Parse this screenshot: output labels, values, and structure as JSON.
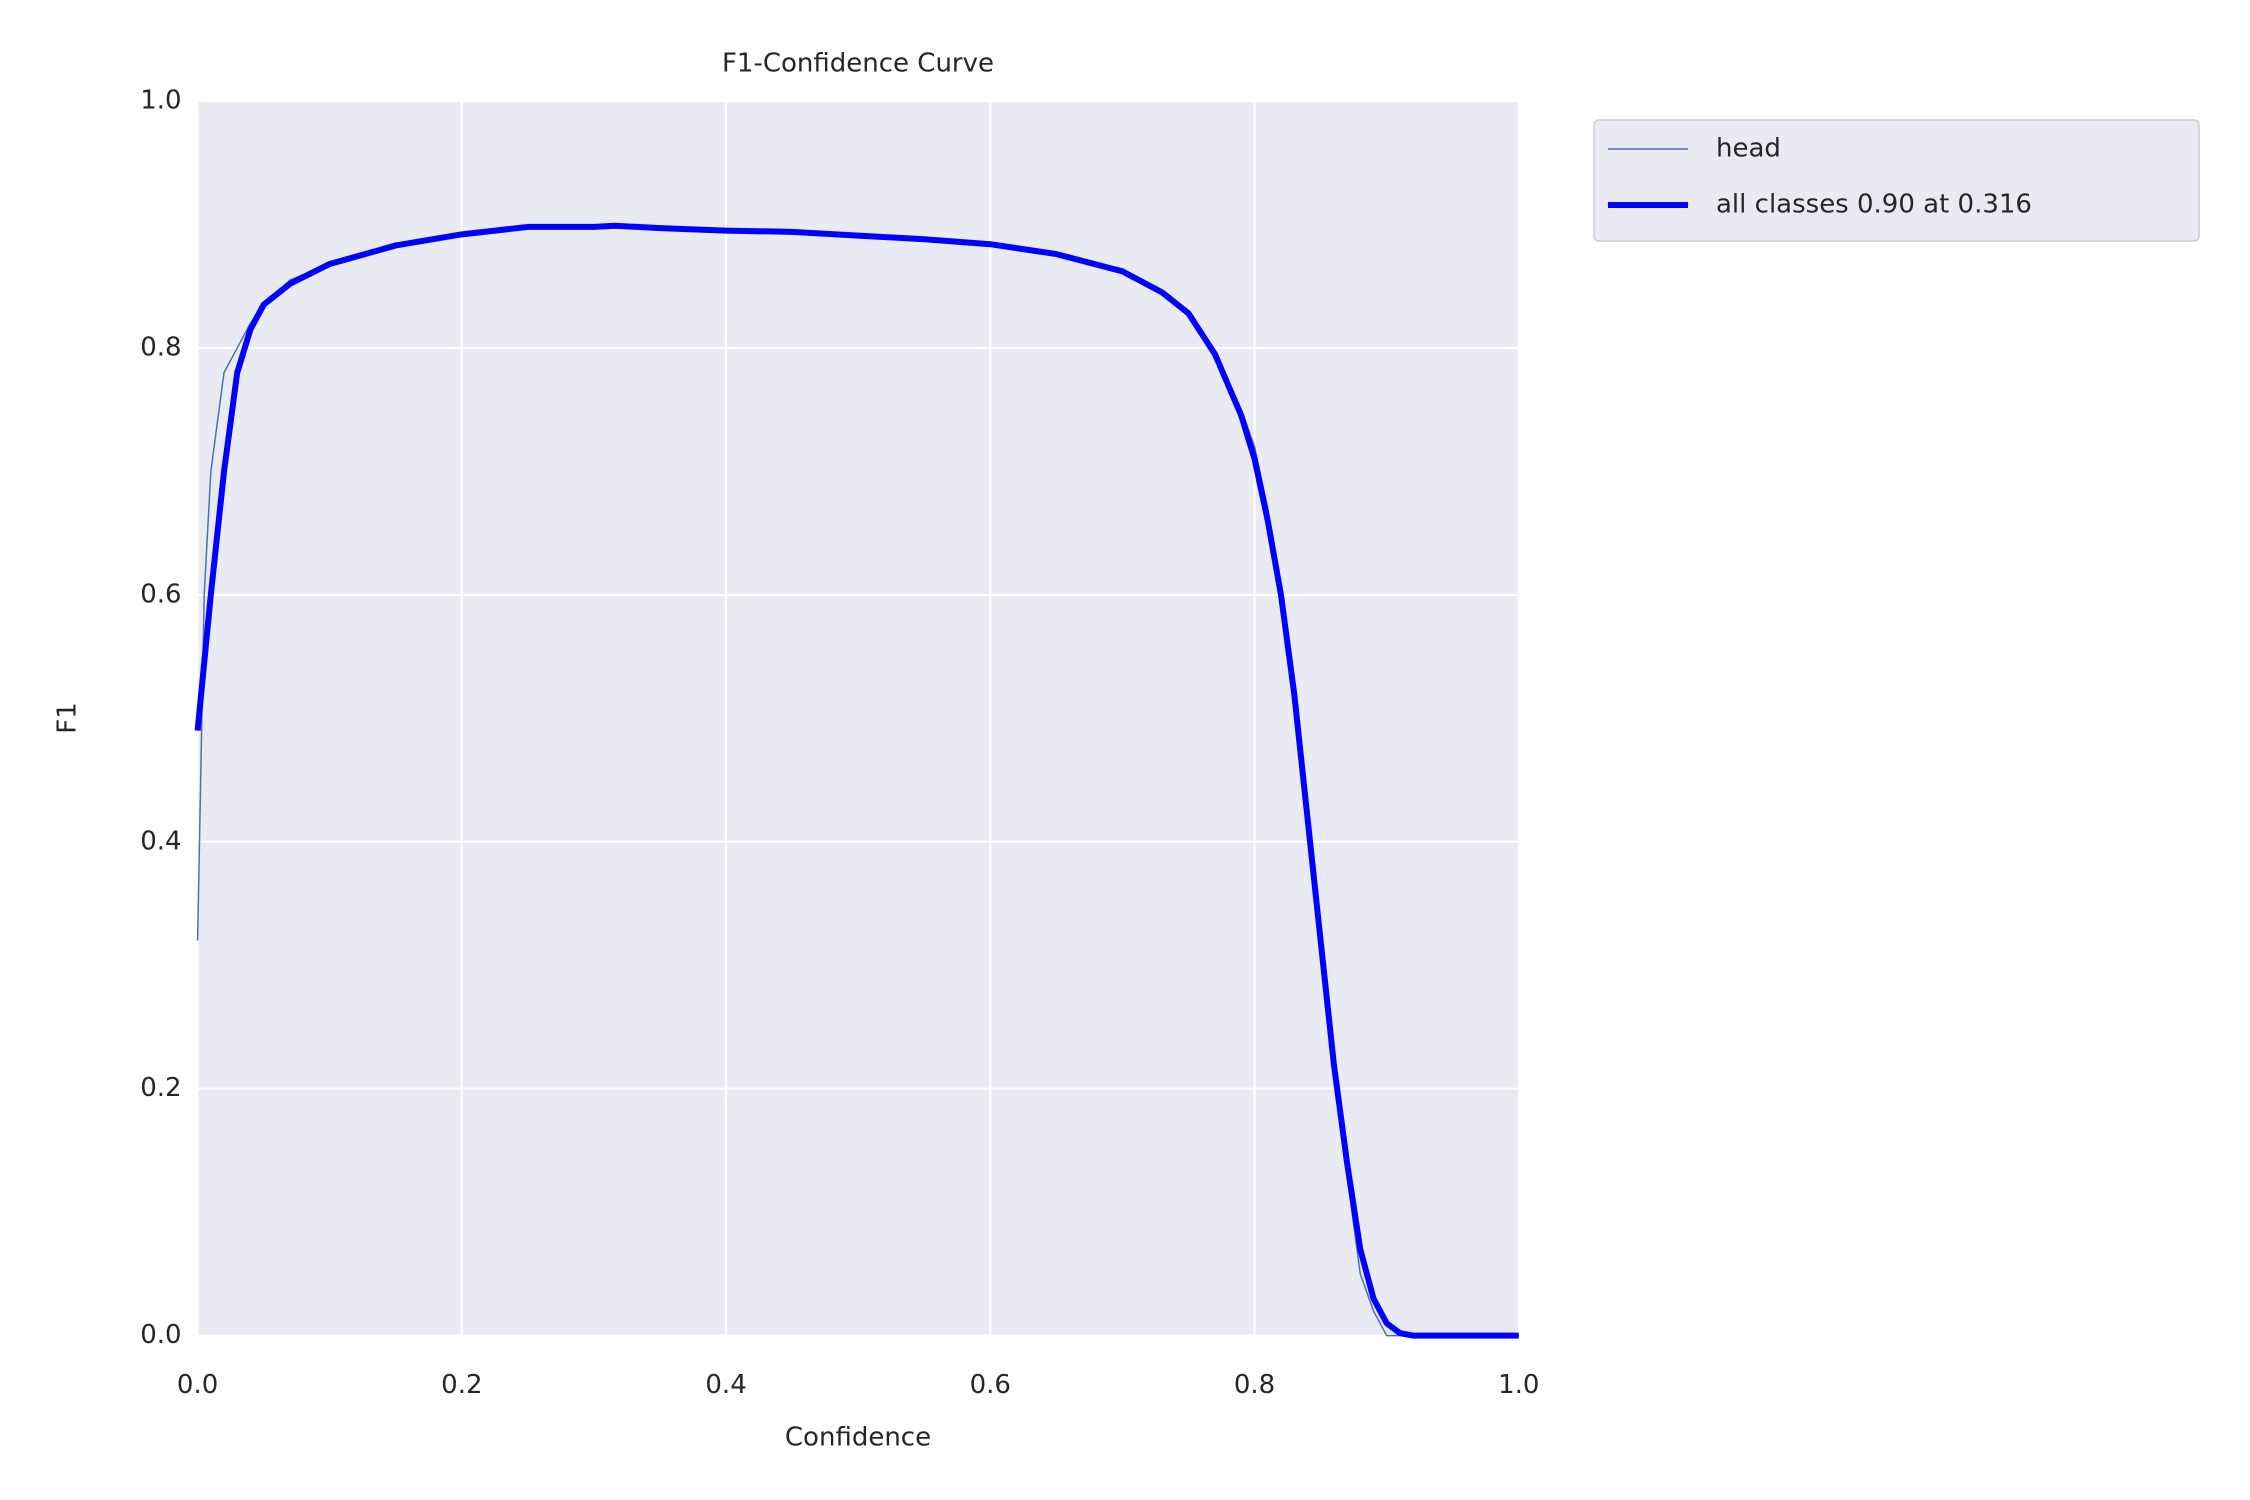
{
  "chart_data": {
    "type": "line",
    "title": "F1-Confidence Curve",
    "x_label": "Confidence",
    "y_label": "F1",
    "x": [
      0,
      0.005,
      0.01,
      0.02,
      0.03,
      0.04,
      0.05,
      0.07,
      0.1,
      0.15,
      0.2,
      0.25,
      0.3,
      0.316,
      0.35,
      0.4,
      0.45,
      0.5,
      0.55,
      0.6,
      0.65,
      0.7,
      0.73,
      0.75,
      0.77,
      0.79,
      0.8,
      0.81,
      0.82,
      0.83,
      0.84,
      0.85,
      0.86,
      0.87,
      0.88,
      0.89,
      0.9,
      0.91,
      0.92,
      1.0
    ],
    "series": [
      {
        "name": "head",
        "color": "#4c72b0",
        "line_width": 1.5,
        "values": [
          0.32,
          0.6,
          0.7,
          0.78,
          0.8,
          0.82,
          0.835,
          0.855,
          0.868,
          0.883,
          0.892,
          0.898,
          0.898,
          0.899,
          0.897,
          0.895,
          0.894,
          0.891,
          0.888,
          0.884,
          0.876,
          0.864,
          0.846,
          0.83,
          0.797,
          0.75,
          0.72,
          0.67,
          0.6,
          0.52,
          0.42,
          0.32,
          0.22,
          0.13,
          0.05,
          0.02,
          0,
          0,
          0,
          0
        ]
      },
      {
        "name": "all classes 0.90 at 0.316",
        "color": "#0000ff",
        "line_width": 6,
        "values": [
          0.49,
          0.545,
          0.6,
          0.7,
          0.78,
          0.815,
          0.835,
          0.852,
          0.868,
          0.883,
          0.892,
          0.898,
          0.898,
          0.899,
          0.897,
          0.895,
          0.894,
          0.891,
          0.888,
          0.884,
          0.876,
          0.862,
          0.845,
          0.828,
          0.795,
          0.745,
          0.71,
          0.66,
          0.6,
          0.52,
          0.42,
          0.32,
          0.22,
          0.14,
          0.07,
          0.03,
          0.01,
          0.002,
          0,
          0
        ]
      }
    ],
    "xlim": [
      0,
      1
    ],
    "ylim": [
      0,
      1
    ],
    "xticks": [
      {
        "value": 0,
        "label": "0.0"
      },
      0.2,
      0.4,
      0.6,
      0.8,
      {
        "value": 1,
        "label": "1.0"
      }
    ],
    "yticks": [
      {
        "value": 0,
        "label": "0.0"
      },
      0.2,
      0.4,
      0.6,
      0.8,
      {
        "value": 1,
        "label": "1.0"
      }
    ],
    "grid": true,
    "legend": "outside-upper-right"
  }
}
